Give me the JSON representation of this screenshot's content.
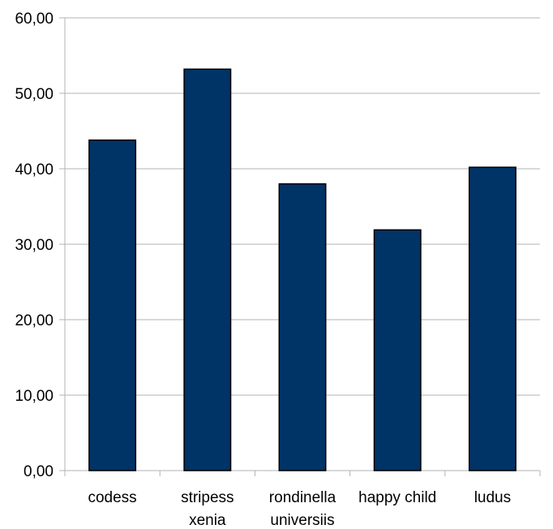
{
  "chart_data": {
    "type": "bar",
    "categories": [
      [
        "codess"
      ],
      [
        "stripess",
        "xenia"
      ],
      [
        "rondinella",
        "universiis"
      ],
      [
        "happy child"
      ],
      [
        "ludus"
      ]
    ],
    "values": [
      43.8,
      53.2,
      38.0,
      31.9,
      40.2
    ],
    "title": "",
    "xlabel": "",
    "ylabel": "",
    "ylim": [
      0,
      60
    ],
    "yticks": [
      "0,00",
      "10,00",
      "20,00",
      "30,00",
      "40,00",
      "50,00",
      "60,00"
    ],
    "grid": true,
    "legend": "none",
    "colors": {
      "bar": "#003366",
      "bar_border": "#000000",
      "grid": "#b3b3b3",
      "axis": "#b3b3b3"
    }
  }
}
